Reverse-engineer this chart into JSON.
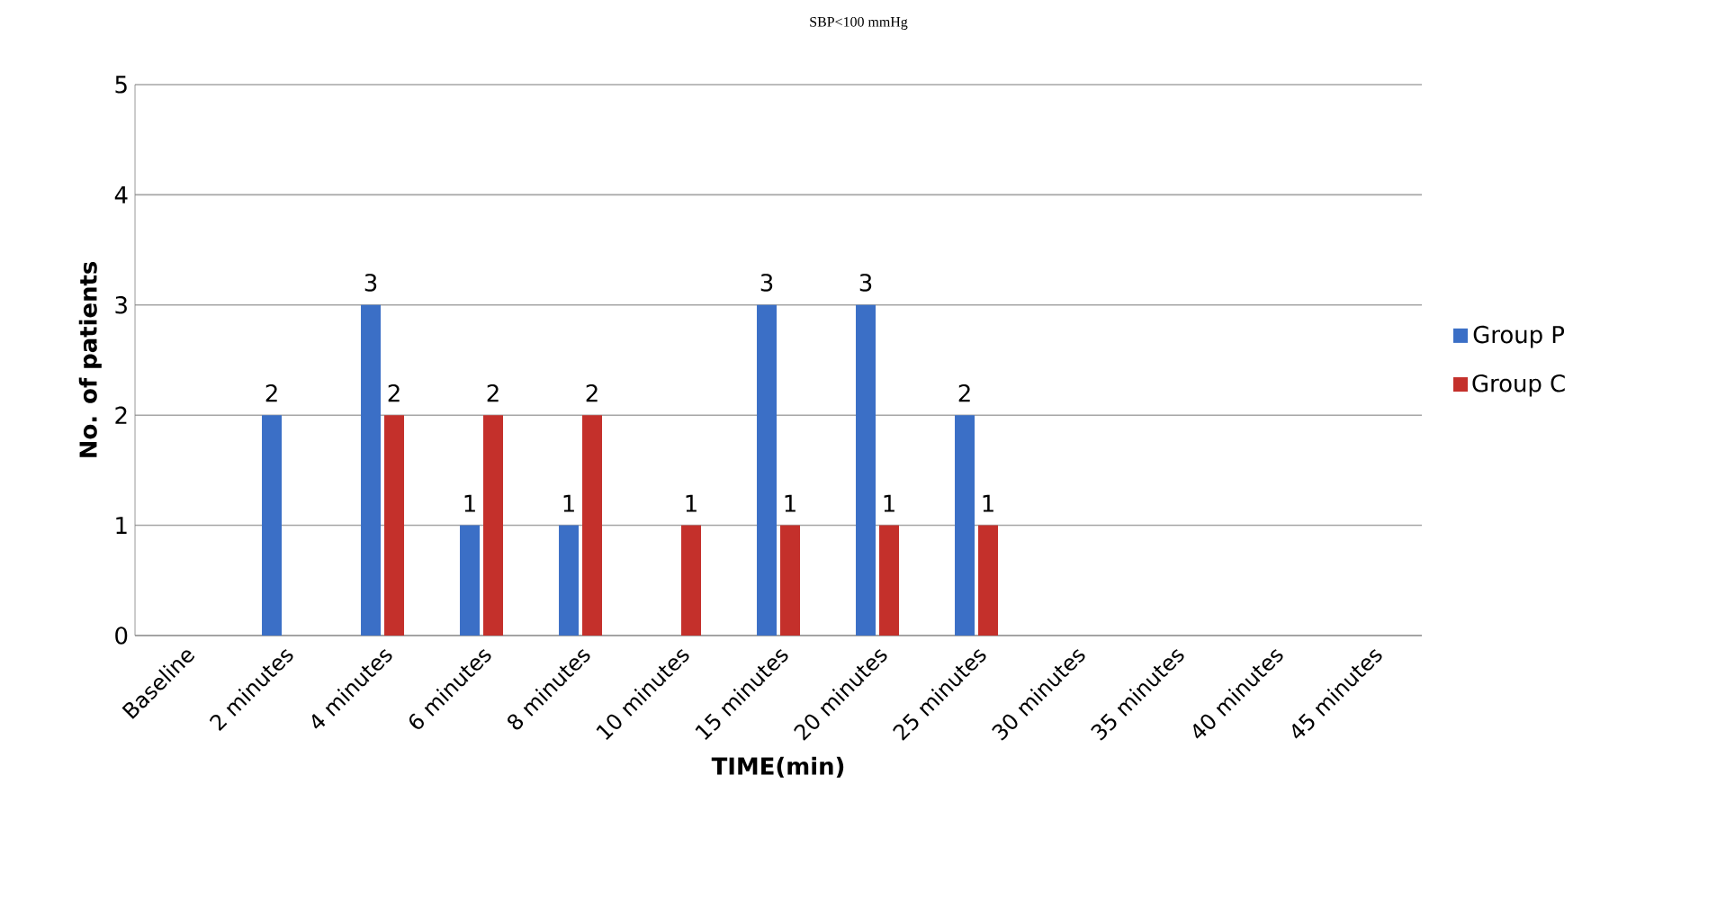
{
  "chart_data": {
    "type": "bar",
    "title": "SBP<100 mmHg",
    "xlabel": "TIME(min)",
    "ylabel": "No. of patients",
    "categories": [
      "Baseline",
      "2 minutes",
      "4 minutes",
      "6 minutes",
      "8 minutes",
      "10 minutes",
      "15 minutes",
      "20 minutes",
      "25 minutes",
      "30 minutes",
      "35 minutes",
      "40 minutes",
      "45 minutes"
    ],
    "series": [
      {
        "name": "Group P",
        "color": "#3b6fc6",
        "values": [
          0,
          2,
          3,
          1,
          1,
          0,
          3,
          3,
          2,
          0,
          0,
          0,
          0
        ],
        "value_labels": [
          null,
          "2",
          "3",
          "1",
          "1",
          null,
          "3",
          "3",
          "2",
          null,
          null,
          null,
          null
        ]
      },
      {
        "name": "Group C",
        "color": "#c4302b",
        "values": [
          0,
          0,
          2,
          2,
          2,
          1,
          1,
          1,
          1,
          0,
          0,
          0,
          0
        ],
        "value_labels": [
          null,
          null,
          "2",
          "2",
          "2",
          "1",
          "1",
          "1",
          "1",
          null,
          null,
          null,
          null
        ]
      }
    ],
    "ylim": [
      0,
      5
    ],
    "yticks": [
      0,
      1,
      2,
      3,
      4,
      5
    ],
    "grid": "y",
    "legend": "right"
  }
}
